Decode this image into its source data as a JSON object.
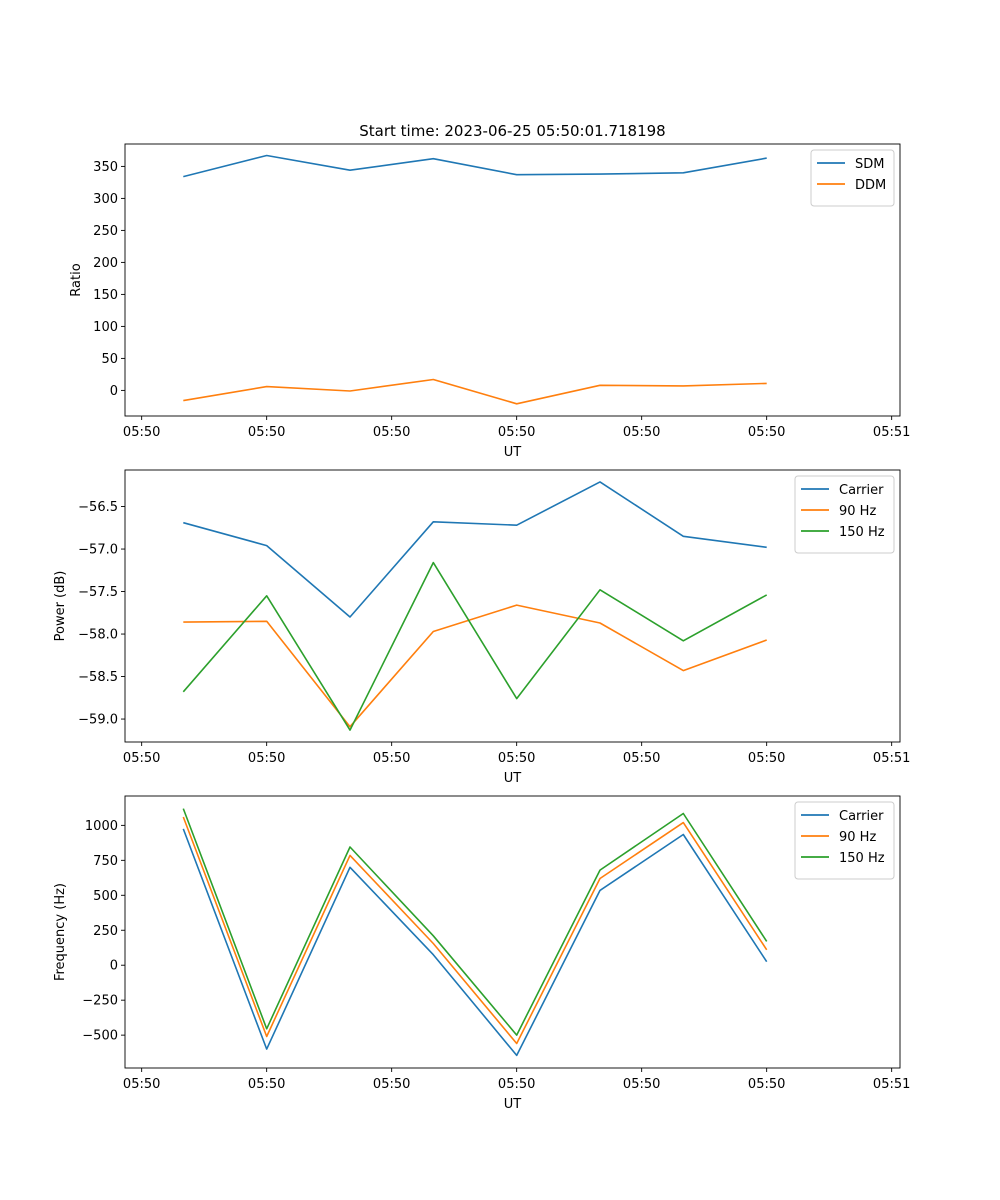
{
  "figure": {
    "title": "Start time: 2023-06-25 05:50:01.718198"
  },
  "chart_data": [
    {
      "type": "line",
      "title": "Start time: 2023-06-25 05:50:01.718198",
      "xlabel": "UT",
      "ylabel": "Ratio",
      "x": [
        0.5,
        1.5,
        2.5,
        3.5,
        4.5,
        5.5,
        6.5,
        7.5
      ],
      "xlim": [
        -0.2,
        9.1
      ],
      "xticks": [
        0,
        1.5,
        3,
        4.5,
        6,
        7.5,
        9
      ],
      "xticklabels": [
        "05:50",
        "05:50",
        "05:50",
        "05:50",
        "05:50",
        "05:50",
        "05:51"
      ],
      "ylim": [
        -40,
        385
      ],
      "yticks": [
        0,
        50,
        100,
        150,
        200,
        250,
        300,
        350
      ],
      "grid": false,
      "legend": "top-right",
      "series": [
        {
          "name": "SDM",
          "color": "#1f77b4",
          "values": [
            334,
            367,
            344,
            362,
            337,
            338,
            340,
            363
          ]
        },
        {
          "name": "DDM",
          "color": "#ff7f0e",
          "values": [
            -16,
            6,
            -1,
            17,
            -21,
            8,
            7,
            11
          ]
        }
      ]
    },
    {
      "type": "line",
      "xlabel": "UT",
      "ylabel": "Power (dB)",
      "x": [
        0.5,
        1.5,
        2.5,
        3.5,
        4.5,
        5.5,
        6.5,
        7.5
      ],
      "xlim": [
        -0.2,
        9.1
      ],
      "xticks": [
        0,
        1.5,
        3,
        4.5,
        6,
        7.5,
        9
      ],
      "xticklabels": [
        "05:50",
        "05:50",
        "05:50",
        "05:50",
        "05:50",
        "05:50",
        "05:51"
      ],
      "ylim": [
        -59.27,
        -56.07
      ],
      "yticks": [
        -59.0,
        -58.5,
        -58.0,
        -57.5,
        -57.0,
        -56.5
      ],
      "yticklabels": [
        "−59.0",
        "−58.5",
        "−58.0",
        "−57.5",
        "−57.0",
        "−56.5"
      ],
      "grid": false,
      "legend": "top-right",
      "series": [
        {
          "name": "Carrier",
          "color": "#1f77b4",
          "values": [
            -56.69,
            -56.96,
            -57.8,
            -56.68,
            -56.72,
            -56.21,
            -56.85,
            -56.98
          ]
        },
        {
          "name": "90 Hz",
          "color": "#ff7f0e",
          "values": [
            -57.86,
            -57.85,
            -59.09,
            -57.97,
            -57.66,
            -57.87,
            -58.43,
            -58.07
          ]
        },
        {
          "name": "150 Hz",
          "color": "#2ca02c",
          "values": [
            -58.68,
            -57.55,
            -59.13,
            -57.16,
            -58.76,
            -57.48,
            -58.08,
            -57.54
          ]
        }
      ]
    },
    {
      "type": "line",
      "xlabel": "UT",
      "ylabel": "Frequency (Hz)",
      "x": [
        0.5,
        1.5,
        2.5,
        3.5,
        4.5,
        5.5,
        6.5,
        7.5
      ],
      "xlim": [
        -0.2,
        9.1
      ],
      "xticks": [
        0,
        1.5,
        3,
        4.5,
        6,
        7.5,
        9
      ],
      "xticklabels": [
        "05:50",
        "05:50",
        "05:50",
        "05:50",
        "05:50",
        "05:50",
        "05:51"
      ],
      "ylim": [
        -735,
        1210
      ],
      "yticks": [
        -500,
        -250,
        0,
        250,
        500,
        750,
        1000
      ],
      "yticklabels": [
        "−500",
        "−250",
        "0",
        "250",
        "500",
        "750",
        "1000"
      ],
      "grid": false,
      "legend": "top-right",
      "series": [
        {
          "name": "Carrier",
          "color": "#1f77b4",
          "values": [
            975,
            -600,
            700,
            75,
            -645,
            535,
            935,
            25
          ]
        },
        {
          "name": "90 Hz",
          "color": "#ff7f0e",
          "values": [
            1060,
            -510,
            785,
            155,
            -560,
            620,
            1020,
            110
          ]
        },
        {
          "name": "150 Hz",
          "color": "#2ca02c",
          "values": [
            1120,
            -455,
            845,
            210,
            -500,
            680,
            1085,
            170
          ]
        }
      ]
    }
  ]
}
